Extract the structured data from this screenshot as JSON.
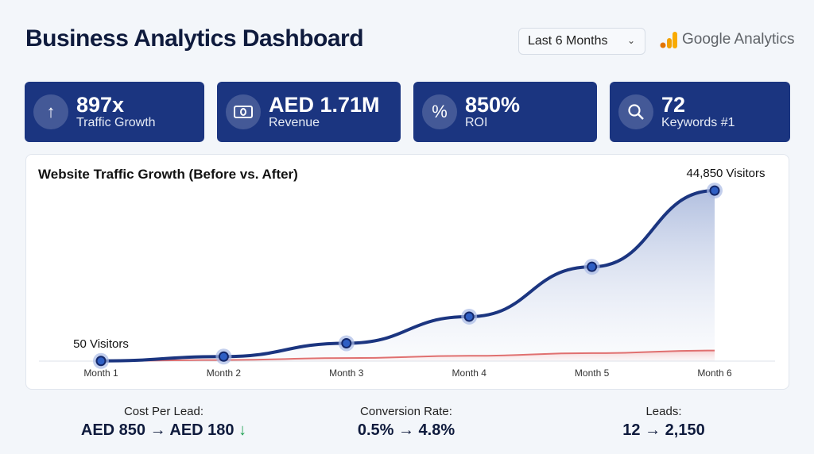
{
  "header": {
    "title": "Business Analytics Dashboard",
    "range": "Last 6 Months",
    "brand": "Google Analytics"
  },
  "kpis": [
    {
      "value": "897x",
      "label": "Traffic Growth",
      "icon": "arrow-up-icon"
    },
    {
      "value": "AED 1.71M",
      "label": "Revenue",
      "icon": "banknote-icon"
    },
    {
      "value": "850%",
      "label": "ROI",
      "icon": "percent-icon"
    },
    {
      "value": "72",
      "label": "Keywords #1",
      "icon": "search-icon"
    }
  ],
  "chart_data": {
    "type": "line",
    "title": "Website Traffic Growth (Before vs. After)",
    "categories": [
      "Month 1",
      "Month 2",
      "Month 3",
      "Month 4",
      "Month 5",
      "Month 6"
    ],
    "series": [
      {
        "values": [
          50,
          1200,
          4700,
          11700,
          24800,
          44850
        ],
        "color": "#1b3580"
      },
      {
        "values": [
          50,
          300,
          800,
          1400,
          2100,
          2800
        ],
        "color": "#e07070"
      }
    ],
    "annotations": [
      "50 Visitors",
      "44,850 Visitors"
    ],
    "ylim": [
      0,
      48000
    ],
    "grid": false
  },
  "stats": [
    {
      "label": "Cost Per Lead:",
      "value": "AED 850 → AED 180",
      "arrow": "↓"
    },
    {
      "label": "Conversion Rate:",
      "value": "0.5% → 4.8%"
    },
    {
      "label": "Leads:",
      "value": "12 → 2,150"
    }
  ]
}
